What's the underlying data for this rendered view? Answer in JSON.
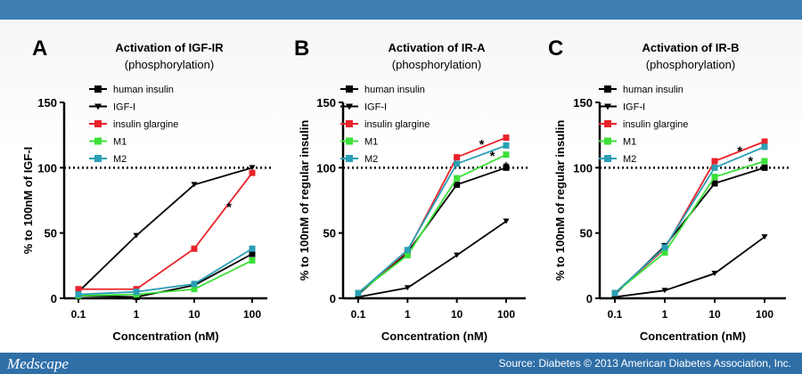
{
  "footer": {
    "logo": "Medscape",
    "source": "Source: Diabetes © 2013 American Diabetes Association, Inc."
  },
  "colors": {
    "human insulin": "#000000",
    "IGF-I": "#000000",
    "insulin glargine": "#e8232a",
    "M1": "#3de03a",
    "M2": "#2a9fb5",
    "header": "#3d7fb2",
    "footer": "#2f6fa8"
  },
  "chart_data": [
    {
      "type": "line",
      "letter": "A",
      "title": "Activation of IGF-IR",
      "subtitle": "(phosphorylation)",
      "xlabel": "Concentration (nM)",
      "ylabel": "% to 100nM of IGF-I",
      "x_scale": "log",
      "x": [
        0.1,
        1,
        10,
        100
      ],
      "x_tick_labels": [
        "0.1",
        "1",
        "10",
        "100"
      ],
      "ylim": [
        0,
        150
      ],
      "y_ticks": [
        0,
        50,
        100,
        150
      ],
      "reference_line": 100,
      "legend_placement": "top-left",
      "series": [
        {
          "name": "human insulin",
          "marker": "square",
          "values": [
            2,
            1,
            10,
            34
          ]
        },
        {
          "name": "IGF-I",
          "marker": "triangle-down",
          "values": [
            5,
            48,
            87,
            100
          ]
        },
        {
          "name": "insulin glargine",
          "marker": "square",
          "values": [
            7,
            7,
            38,
            96
          ]
        },
        {
          "name": "M1",
          "marker": "square",
          "values": [
            2,
            3,
            7,
            29
          ]
        },
        {
          "name": "M2",
          "marker": "square",
          "values": [
            3,
            5,
            11,
            38
          ]
        }
      ],
      "annotations": [
        {
          "text": "*",
          "x": 40,
          "y": 72
        }
      ]
    },
    {
      "type": "line",
      "letter": "B",
      "title": "Activation of IR-A",
      "subtitle": "(phosphorylation)",
      "xlabel": "Concentration (nM)",
      "ylabel": "% to 100nM of regular insulin",
      "x_scale": "log",
      "x": [
        0.1,
        1,
        10,
        100
      ],
      "x_tick_labels": [
        "0.1",
        "1",
        "10",
        "100"
      ],
      "ylim": [
        0,
        150
      ],
      "y_ticks": [
        0,
        50,
        100,
        150
      ],
      "reference_line": 100,
      "legend_placement": "top-left",
      "series": [
        {
          "name": "human insulin",
          "marker": "square",
          "values": [
            3,
            35,
            87,
            100
          ]
        },
        {
          "name": "IGF-I",
          "marker": "triangle-down",
          "values": [
            1,
            8,
            33,
            59
          ]
        },
        {
          "name": "insulin glargine",
          "marker": "square",
          "values": [
            4,
            36,
            108,
            123
          ]
        },
        {
          "name": "M1",
          "marker": "square",
          "values": [
            4,
            33,
            92,
            110
          ]
        },
        {
          "name": "M2",
          "marker": "square",
          "values": [
            4,
            37,
            103,
            117
          ]
        }
      ],
      "annotations": [
        {
          "text": "*",
          "x": 32,
          "y": 120
        },
        {
          "text": "*",
          "x": 32,
          "y": 111
        },
        {
          "text": "*",
          "x": 100,
          "y": 103
        }
      ]
    },
    {
      "type": "line",
      "letter": "C",
      "title": "Activation of IR-B",
      "subtitle": "(phosphorylation)",
      "xlabel": "Concentration (nM)",
      "ylabel": "% to 100nM of regular insulin",
      "x_scale": "log",
      "x": [
        0.1,
        1,
        10,
        100
      ],
      "x_tick_labels": [
        "0.1",
        "1",
        "10",
        "100"
      ],
      "ylim": [
        0,
        150
      ],
      "y_ticks": [
        0,
        50,
        100,
        150
      ],
      "reference_line": 100,
      "legend_placement": "top-left",
      "series": [
        {
          "name": "human insulin",
          "marker": "square",
          "values": [
            3,
            40,
            88,
            100
          ]
        },
        {
          "name": "IGF-I",
          "marker": "triangle-down",
          "values": [
            1,
            6,
            19,
            47
          ]
        },
        {
          "name": "insulin glargine",
          "marker": "square",
          "values": [
            4,
            38,
            105,
            120
          ]
        },
        {
          "name": "M1",
          "marker": "square",
          "values": [
            4,
            35,
            93,
            105
          ]
        },
        {
          "name": "M2",
          "marker": "square",
          "values": [
            4,
            39,
            100,
            116
          ]
        }
      ],
      "annotations": [
        {
          "text": "*",
          "x": 32,
          "y": 115
        },
        {
          "text": "*",
          "x": 32,
          "y": 107
        }
      ]
    }
  ]
}
